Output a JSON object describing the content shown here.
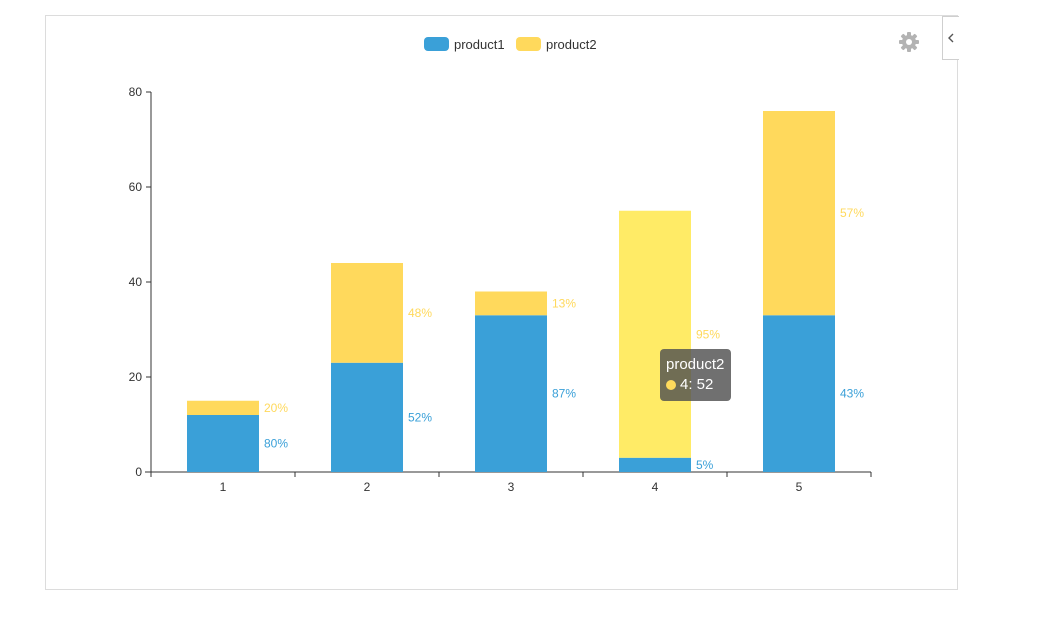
{
  "chart_data": {
    "type": "bar",
    "stacked": true,
    "categories": [
      "1",
      "2",
      "3",
      "4",
      "5"
    ],
    "series": [
      {
        "name": "product1",
        "color": "#3aa0d8",
        "values": [
          12,
          23,
          33,
          3,
          33
        ],
        "labels": [
          "80%",
          "52%",
          "87%",
          "5%",
          "43%"
        ]
      },
      {
        "name": "product2",
        "color": "#ffd95c",
        "values": [
          3,
          21,
          5,
          52,
          43
        ],
        "labels": [
          "20%",
          "48%",
          "13%",
          "95%",
          "57%"
        ]
      }
    ],
    "ylim": [
      0,
      80
    ],
    "yticks": [
      "0",
      "20",
      "40",
      "60",
      "80"
    ],
    "highlight": {
      "series": 1,
      "index": 3,
      "color": "#ffeb66"
    },
    "legend": "top-center"
  },
  "tooltip": {
    "series_name": "product2",
    "value_text": "4: 52"
  },
  "toolbar": {
    "settings_icon": "gear-icon",
    "collapse_icon": "chevron-left-icon"
  }
}
